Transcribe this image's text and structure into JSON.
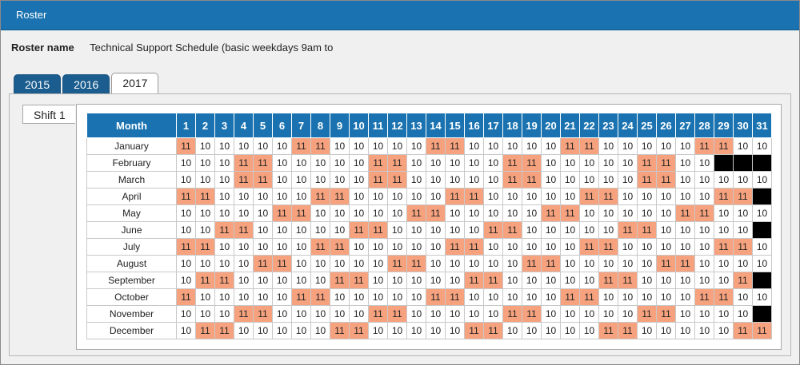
{
  "window": {
    "title": "Roster"
  },
  "roster": {
    "name_label": "Roster name",
    "name_value": "Technical Support Schedule (basic weekdays 9am to"
  },
  "tabs": [
    "2015",
    "2016",
    "2017"
  ],
  "active_tab": "2017",
  "shift_tab": "Shift 1",
  "table": {
    "month_header": "Month",
    "days": [
      "1",
      "2",
      "3",
      "4",
      "5",
      "6",
      "7",
      "8",
      "9",
      "10",
      "11",
      "12",
      "13",
      "14",
      "15",
      "16",
      "17",
      "18",
      "19",
      "20",
      "21",
      "22",
      "23",
      "24",
      "25",
      "26",
      "27",
      "28",
      "29",
      "30",
      "31"
    ],
    "rows": [
      {
        "month": "January",
        "cells": [
          "11",
          "10",
          "10",
          "10",
          "10",
          "10",
          "11",
          "11",
          "10",
          "10",
          "10",
          "10",
          "10",
          "11",
          "11",
          "10",
          "10",
          "10",
          "10",
          "10",
          "11",
          "11",
          "10",
          "10",
          "10",
          "10",
          "10",
          "11",
          "11",
          "10",
          "10"
        ]
      },
      {
        "month": "February",
        "cells": [
          "10",
          "10",
          "10",
          "11",
          "11",
          "10",
          "10",
          "10",
          "10",
          "10",
          "11",
          "11",
          "10",
          "10",
          "10",
          "10",
          "10",
          "11",
          "11",
          "10",
          "10",
          "10",
          "10",
          "10",
          "11",
          "11",
          "10",
          "10",
          "",
          "",
          ""
        ]
      },
      {
        "month": "March",
        "cells": [
          "10",
          "10",
          "10",
          "11",
          "11",
          "10",
          "10",
          "10",
          "10",
          "10",
          "11",
          "11",
          "10",
          "10",
          "10",
          "10",
          "10",
          "11",
          "11",
          "10",
          "10",
          "10",
          "10",
          "10",
          "11",
          "11",
          "10",
          "10",
          "10",
          "10",
          "10"
        ]
      },
      {
        "month": "April",
        "cells": [
          "11",
          "11",
          "10",
          "10",
          "10",
          "10",
          "10",
          "11",
          "11",
          "10",
          "10",
          "10",
          "10",
          "10",
          "11",
          "11",
          "10",
          "10",
          "10",
          "10",
          "10",
          "11",
          "11",
          "10",
          "10",
          "10",
          "10",
          "10",
          "11",
          "11",
          ""
        ]
      },
      {
        "month": "May",
        "cells": [
          "10",
          "10",
          "10",
          "10",
          "10",
          "11",
          "11",
          "10",
          "10",
          "10",
          "10",
          "10",
          "11",
          "11",
          "10",
          "10",
          "10",
          "10",
          "10",
          "11",
          "11",
          "10",
          "10",
          "10",
          "10",
          "10",
          "11",
          "11",
          "10",
          "10",
          "10"
        ]
      },
      {
        "month": "June",
        "cells": [
          "10",
          "10",
          "11",
          "11",
          "10",
          "10",
          "10",
          "10",
          "10",
          "11",
          "11",
          "10",
          "10",
          "10",
          "10",
          "10",
          "11",
          "11",
          "10",
          "10",
          "10",
          "10",
          "10",
          "11",
          "11",
          "10",
          "10",
          "10",
          "10",
          "10",
          ""
        ]
      },
      {
        "month": "July",
        "cells": [
          "11",
          "11",
          "10",
          "10",
          "10",
          "10",
          "10",
          "11",
          "11",
          "10",
          "10",
          "10",
          "10",
          "10",
          "11",
          "11",
          "10",
          "10",
          "10",
          "10",
          "10",
          "11",
          "11",
          "10",
          "10",
          "10",
          "10",
          "10",
          "11",
          "11",
          "10"
        ]
      },
      {
        "month": "August",
        "cells": [
          "10",
          "10",
          "10",
          "10",
          "11",
          "11",
          "10",
          "10",
          "10",
          "10",
          "10",
          "11",
          "11",
          "10",
          "10",
          "10",
          "10",
          "10",
          "11",
          "11",
          "10",
          "10",
          "10",
          "10",
          "10",
          "11",
          "11",
          "10",
          "10",
          "10",
          "10"
        ]
      },
      {
        "month": "September",
        "cells": [
          "10",
          "11",
          "11",
          "10",
          "10",
          "10",
          "10",
          "10",
          "11",
          "11",
          "10",
          "10",
          "10",
          "10",
          "10",
          "11",
          "11",
          "10",
          "10",
          "10",
          "10",
          "10",
          "11",
          "11",
          "10",
          "10",
          "10",
          "10",
          "10",
          "11",
          ""
        ]
      },
      {
        "month": "October",
        "cells": [
          "11",
          "10",
          "10",
          "10",
          "10",
          "10",
          "11",
          "11",
          "10",
          "10",
          "10",
          "10",
          "10",
          "11",
          "11",
          "10",
          "10",
          "10",
          "10",
          "10",
          "11",
          "11",
          "10",
          "10",
          "10",
          "10",
          "10",
          "11",
          "11",
          "10",
          "10"
        ]
      },
      {
        "month": "November",
        "cells": [
          "10",
          "10",
          "10",
          "11",
          "11",
          "10",
          "10",
          "10",
          "10",
          "10",
          "11",
          "11",
          "10",
          "10",
          "10",
          "10",
          "10",
          "11",
          "11",
          "10",
          "10",
          "10",
          "10",
          "10",
          "11",
          "11",
          "10",
          "10",
          "10",
          "10",
          ""
        ]
      },
      {
        "month": "December",
        "cells": [
          "10",
          "11",
          "11",
          "10",
          "10",
          "10",
          "10",
          "10",
          "11",
          "11",
          "10",
          "10",
          "10",
          "10",
          "10",
          "11",
          "11",
          "10",
          "10",
          "10",
          "10",
          "10",
          "11",
          "11",
          "10",
          "10",
          "10",
          "10",
          "10",
          "11",
          "11"
        ]
      }
    ]
  },
  "colors": {
    "header_bg": "#1a73b0",
    "shift_11": "#f7a27e",
    "invalid_day": "#000000"
  }
}
